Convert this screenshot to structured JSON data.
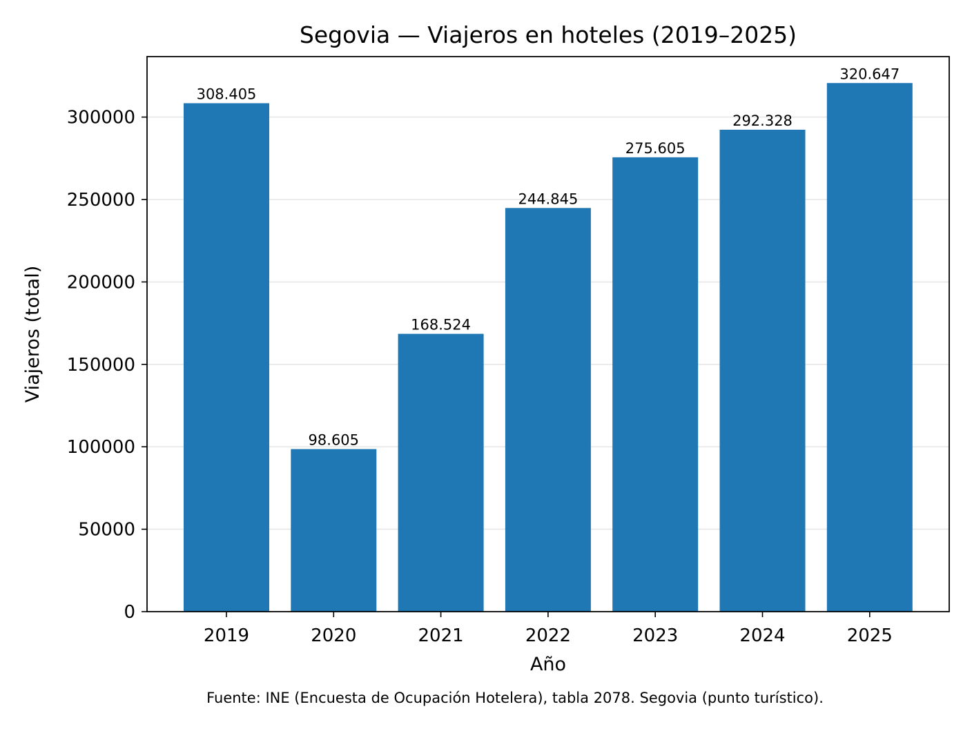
{
  "chart_data": {
    "type": "bar",
    "title": "Segovia — Viajeros en hoteles (2019–2025)",
    "xlabel": "Año",
    "ylabel": "Viajeros (total)",
    "categories": [
      "2019",
      "2020",
      "2021",
      "2022",
      "2023",
      "2024",
      "2025"
    ],
    "values": [
      308405,
      98605,
      168524,
      244845,
      275605,
      292328,
      320647
    ],
    "data_labels": [
      "308.405",
      "98.605",
      "168.524",
      "244.845",
      "275.605",
      "292.328",
      "320.647"
    ],
    "ylim": [
      0,
      336679
    ],
    "yticks": [
      0,
      50000,
      100000,
      150000,
      200000,
      250000,
      300000
    ],
    "ytick_labels": [
      "0",
      "50000",
      "100000",
      "150000",
      "200000",
      "250000",
      "300000"
    ],
    "grid": "horizontal",
    "bar_color": "#1f77b4",
    "grid_color": "#e6e6e6"
  },
  "footer": {
    "source": "Fuente: INE (Encuesta de Ocupación Hotelera), tabla 2078. Segovia (punto turístico)."
  }
}
